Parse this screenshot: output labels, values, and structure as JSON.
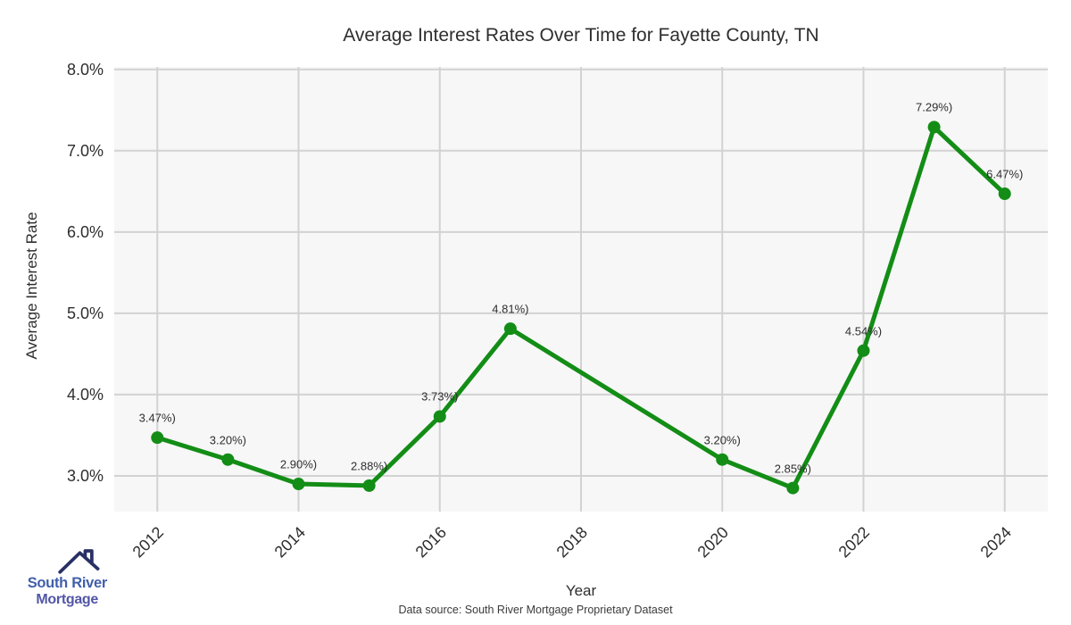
{
  "chart_data": {
    "type": "line",
    "title": "Average Interest Rates Over Time for Fayette County, TN",
    "xlabel": "Year",
    "ylabel": "Average Interest Rate",
    "x": [
      2012,
      2013,
      2014,
      2015,
      2016,
      2017,
      2020,
      2021,
      2022,
      2023,
      2024
    ],
    "values": [
      3.47,
      3.2,
      2.9,
      2.88,
      3.73,
      4.81,
      3.2,
      2.85,
      4.54,
      7.29,
      6.47
    ],
    "point_labels": [
      "3.47%)",
      "3.20%)",
      "2.90%)",
      "2.88%)",
      "3.73%)",
      "4.81%)",
      "3.20%)",
      "2.85%)",
      "4.54%)",
      "7.29%)",
      "6.47%)"
    ],
    "x_ticks": [
      2012,
      2014,
      2016,
      2018,
      2020,
      2022,
      2024
    ],
    "x_tick_labels": [
      "2012",
      "2014",
      "2016",
      "2018",
      "2020",
      "2022",
      "2024"
    ],
    "y_ticks": [
      3,
      4,
      5,
      6,
      7,
      8
    ],
    "y_tick_labels": [
      "3.0%",
      "4.0%",
      "5.0%",
      "6.0%",
      "7.0%",
      "8.0%"
    ],
    "xlim": [
      2011.39,
      2024.61
    ],
    "ylim": [
      2.56,
      8.03
    ],
    "grid": true,
    "legend_position": "none",
    "line_color": "#138d16",
    "marker": "circle"
  },
  "colors": {
    "line": "#138d16",
    "plot_background": "#f7f7f7",
    "gridline": "#d2d2d2",
    "text": "#2e2e2e",
    "logo_roof": "#283064",
    "logo_text_primary": "#425faa",
    "logo_text_secondary": "#5256a6"
  },
  "footer": {
    "data_source": "Data source: South River Mortgage Proprietary Dataset"
  },
  "logo": {
    "line1": "South River",
    "line2": "Mortgage"
  }
}
